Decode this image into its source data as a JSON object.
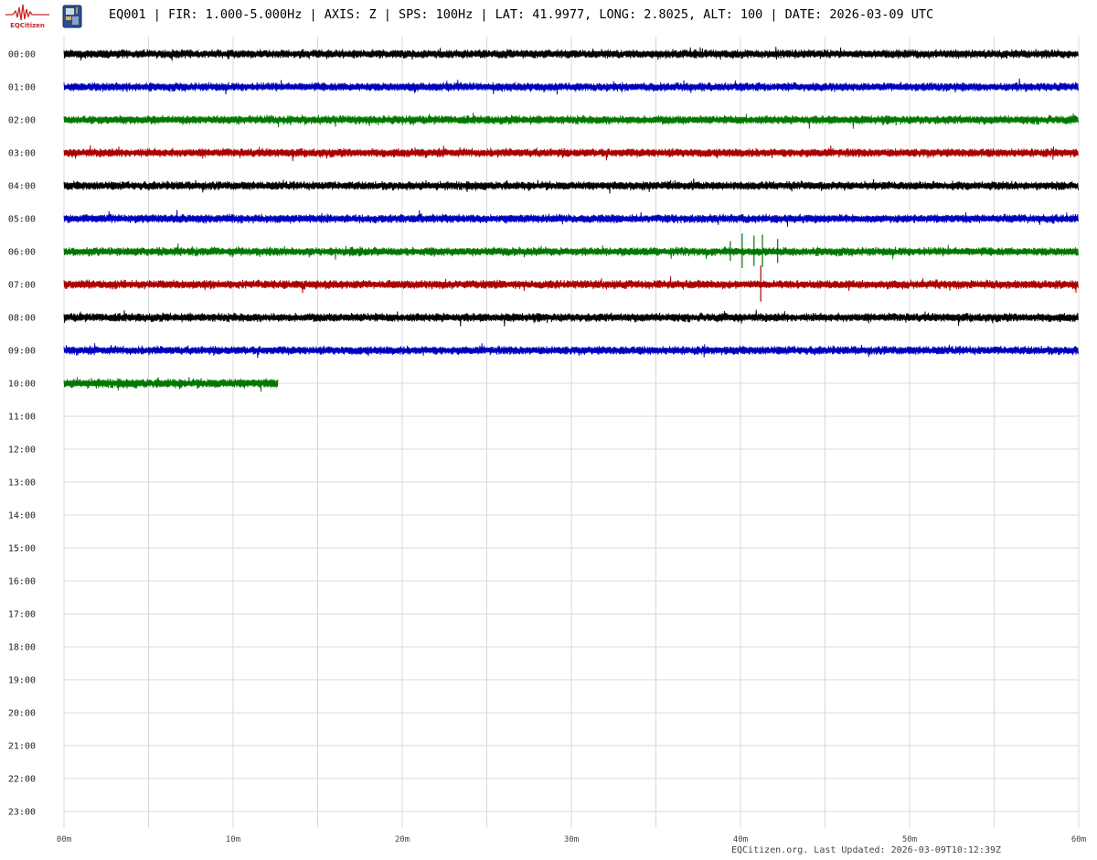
{
  "header": {
    "logo_text": "EQCitizen",
    "title": "EQ001 | FIR: 1.000-5.000Hz | AXIS: Z | SPS: 100Hz | LAT: 41.9977, LONG: 2.8025, ALT: 100 | DATE: 2026-03-09 UTC"
  },
  "footer": {
    "text": "EQCitizen.org. Last Updated: 2026-03-09T10:12:39Z"
  },
  "colors": {
    "palette": [
      "#000000",
      "#0000bb",
      "#007700",
      "#aa0000"
    ],
    "grid": "#d8d8d8"
  },
  "chart_data": {
    "type": "line",
    "title": "",
    "xlabel": "",
    "ylabel": "",
    "x_ticks": [
      "00m",
      "10m",
      "20m",
      "30m",
      "40m",
      "50m",
      "60m"
    ],
    "xlim": [
      0,
      60
    ],
    "x_unit": "minutes",
    "y_categories": [
      "00:00",
      "01:00",
      "02:00",
      "03:00",
      "04:00",
      "05:00",
      "06:00",
      "07:00",
      "08:00",
      "09:00",
      "10:00",
      "11:00",
      "12:00",
      "13:00",
      "14:00",
      "15:00",
      "16:00",
      "17:00",
      "18:00",
      "19:00",
      "20:00",
      "21:00",
      "22:00",
      "23:00"
    ],
    "grid": true,
    "series": [
      {
        "hour": "00:00",
        "color": "#000000",
        "start_min": 0,
        "end_min": 60,
        "amplitude": 1.0
      },
      {
        "hour": "01:00",
        "color": "#0000bb",
        "start_min": 0,
        "end_min": 60,
        "amplitude": 1.0
      },
      {
        "hour": "02:00",
        "color": "#007700",
        "start_min": 0,
        "end_min": 60,
        "amplitude": 1.0
      },
      {
        "hour": "03:00",
        "color": "#aa0000",
        "start_min": 0,
        "end_min": 60,
        "amplitude": 1.0
      },
      {
        "hour": "04:00",
        "color": "#000000",
        "start_min": 0,
        "end_min": 60,
        "amplitude": 1.0
      },
      {
        "hour": "05:00",
        "color": "#0000bb",
        "start_min": 0,
        "end_min": 60,
        "amplitude": 1.0
      },
      {
        "hour": "06:00",
        "color": "#007700",
        "start_min": 0,
        "end_min": 60,
        "amplitude": 1.0,
        "spikes_min": [
          39.4,
          40.1,
          40.8,
          41.3,
          42.2
        ]
      },
      {
        "hour": "07:00",
        "color": "#aa0000",
        "start_min": 0,
        "end_min": 60,
        "amplitude": 1.0,
        "spikes_min": [
          41.2
        ]
      },
      {
        "hour": "08:00",
        "color": "#000000",
        "start_min": 0,
        "end_min": 60,
        "amplitude": 1.0
      },
      {
        "hour": "09:00",
        "color": "#0000bb",
        "start_min": 0,
        "end_min": 60,
        "amplitude": 1.0
      },
      {
        "hour": "10:00",
        "color": "#007700",
        "start_min": 0,
        "end_min": 12.65,
        "amplitude": 1.1
      }
    ]
  }
}
